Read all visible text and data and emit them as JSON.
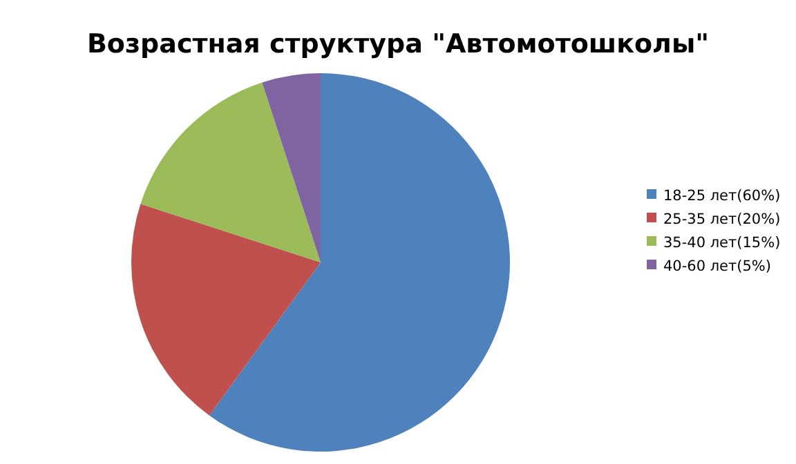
{
  "chart_data": {
    "type": "pie",
    "title": "Возрастная структура \"Автомотошколы\"",
    "categories": [
      "18-25 лет(60%)",
      "25-35 лет(20%)",
      "35-40 лет(15%)",
      "40-60 лет(5%)"
    ],
    "values": [
      60,
      20,
      15,
      5
    ],
    "colors": [
      "#4f81bd",
      "#c0504d",
      "#9bbb59",
      "#8064a2"
    ],
    "legend": "right"
  }
}
